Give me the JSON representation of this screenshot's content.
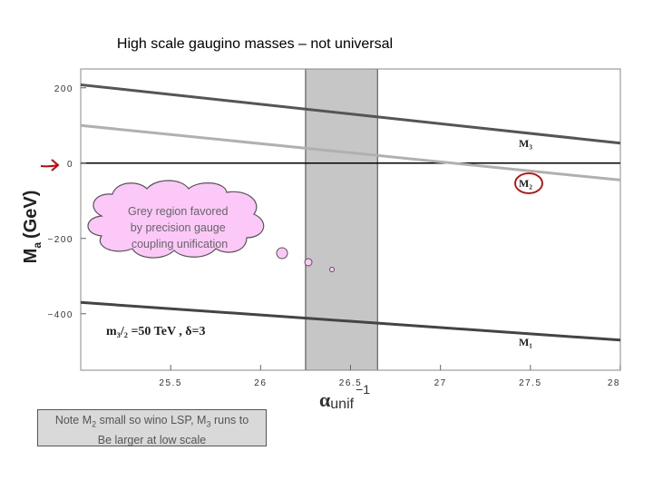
{
  "title": "High scale gaugino masses – not universal",
  "chart_data": {
    "type": "line",
    "xlabel_main": "α",
    "xlabel_sub": "unif",
    "xlabel_sup": "−1",
    "ylabel_main": "M",
    "ylabel_sub": "a",
    "ylabel_unit": "(GeV)",
    "xlim": [
      25,
      28
    ],
    "ylim": [
      -550,
      250
    ],
    "x_ticks": [
      25.5,
      26,
      26.5,
      27,
      27.5,
      28
    ],
    "x_tick_labels": [
      "25.5",
      "26",
      "26.5",
      "27",
      "27.5",
      "28"
    ],
    "y_ticks": [
      200,
      0,
      -200,
      -400
    ],
    "y_tick_labels": [
      "200",
      "0",
      "−200",
      "−400"
    ],
    "series": [
      {
        "name": "M3",
        "color": "#555555",
        "x": [
          25,
          28
        ],
        "y": [
          208,
          53
        ]
      },
      {
        "name": "M2",
        "color": "#b0b0b0",
        "x": [
          25,
          28
        ],
        "y": [
          100,
          -45
        ]
      },
      {
        "name": "M1",
        "color": "#444444",
        "x": [
          25,
          28
        ],
        "y": [
          -370,
          -470
        ]
      }
    ],
    "series_labels": {
      "M3": "M₃",
      "M2": "M₂",
      "M1": "M₁"
    },
    "zero_line": 0,
    "shaded_region": {
      "x": [
        26.25,
        26.65
      ],
      "color": "#c6c6c6"
    },
    "params_label": "m₃/₂ =50 TeV ,     δ=3"
  },
  "callout": {
    "text_lines": [
      "Grey region favored",
      "by precision gauge",
      "coupling unification"
    ]
  },
  "note": {
    "line1_a": "Note M",
    "line1_sub1": "2",
    "line1_b": " small so wino LSP, M",
    "line1_sub2": "3",
    "line1_c": " runs to",
    "line2": "Be larger at low scale"
  },
  "annotations": {
    "arrow_color": "#cc0000",
    "circle_color": "#cc0000",
    "cloud_fill": "#fbc8f8",
    "cloud_stroke": "#555555"
  }
}
